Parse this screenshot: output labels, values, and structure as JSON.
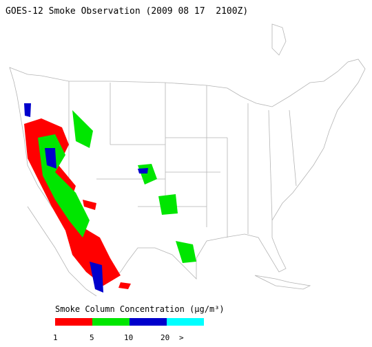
{
  "title": "GOES-12 Smoke Observation (2009 08 17  2100Z)",
  "legend": {
    "title": "Smoke Column Concentration (μg/m³)",
    "colors": [
      "#ff0000",
      "#00e600",
      "#0000cc",
      "#00ffff"
    ],
    "tick_labels": [
      "1",
      "5",
      "10",
      "20",
      ">"
    ]
  }
}
